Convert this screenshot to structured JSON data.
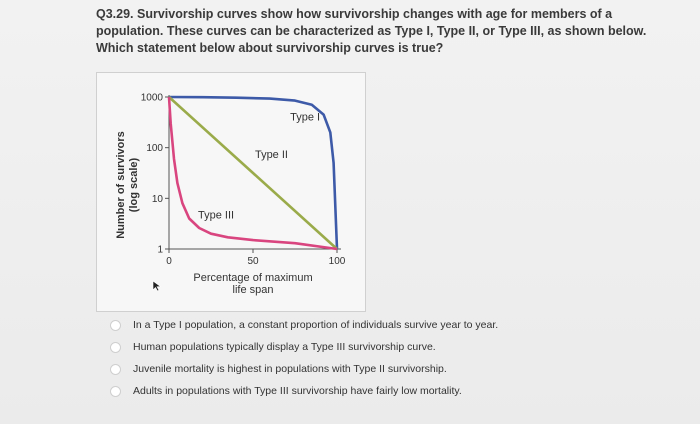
{
  "question": {
    "text": "Q3.29. Survivorship curves show how survivorship changes with age for members of a population. These curves can be characterized as Type I, Type II, or Type III, as shown below. Which statement below about survivorship curves is true?"
  },
  "chart_data": {
    "type": "line",
    "xlabel": "Percentage of maximum life span",
    "ylabel": "Number of survivors (log scale)",
    "xlim": [
      0,
      100
    ],
    "ylim": [
      1,
      1000
    ],
    "yscale": "log",
    "x_ticks": [
      "0",
      "50",
      "100"
    ],
    "y_ticks": [
      "1000",
      "100",
      "10",
      "1"
    ],
    "series": [
      {
        "name": "Type I",
        "color": "#3d5aa8",
        "x": [
          0,
          20,
          40,
          60,
          75,
          85,
          92,
          96,
          98,
          100
        ],
        "y": [
          1000,
          990,
          970,
          930,
          850,
          700,
          450,
          200,
          50,
          1
        ]
      },
      {
        "name": "Type II",
        "color": "#9aab4a",
        "x": [
          0,
          50,
          100
        ],
        "y": [
          1000,
          31.6,
          1
        ]
      },
      {
        "name": "Type III",
        "color": "#d9457f",
        "x": [
          0,
          1,
          3,
          5,
          8,
          12,
          18,
          25,
          35,
          50,
          75,
          100
        ],
        "y": [
          1000,
          300,
          60,
          20,
          8,
          4,
          2.6,
          2,
          1.7,
          1.5,
          1.3,
          1
        ]
      }
    ]
  },
  "answers": [
    {
      "text": "In a Type I population, a constant proportion of individuals survive year to year."
    },
    {
      "text": "Human populations typically display a Type III survivorship curve."
    },
    {
      "text": "Juvenile mortality is highest in populations with Type II survivorship."
    },
    {
      "text": "Adults in populations with Type III survivorship have fairly low mortality."
    }
  ]
}
